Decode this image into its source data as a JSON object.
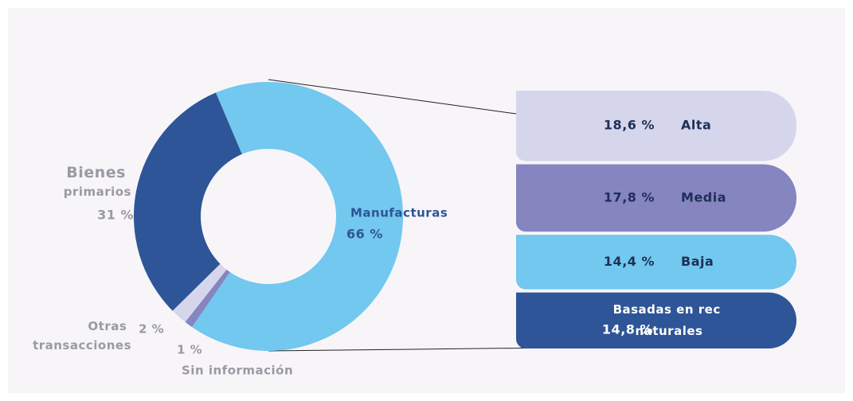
{
  "chart_data": [
    {
      "type": "pie",
      "categories": [
        "Manufacturas",
        "Sin información",
        "Otras transacciones",
        "Bienes primarios"
      ],
      "values": [
        66,
        1,
        2,
        31
      ],
      "value_labels": [
        "66 %",
        "1 %",
        "2 %",
        "31 %"
      ],
      "colors": [
        "#72c8ee",
        "#8585c0",
        "#d5d6ec",
        "#2e5597"
      ]
    },
    {
      "type": "breakdown",
      "categories": [
        "Alta",
        "Media",
        "Baja",
        "Basadas en rec naturales"
      ],
      "values": [
        18.6,
        17.8,
        14.4,
        14.8
      ],
      "value_labels": [
        "18,6 %",
        "17,8 %",
        "14,4 %",
        "14,8 %"
      ],
      "colors": [
        "#d5d6ec",
        "#8585c0",
        "#72c8ee",
        "#2e5597"
      ]
    }
  ]
}
